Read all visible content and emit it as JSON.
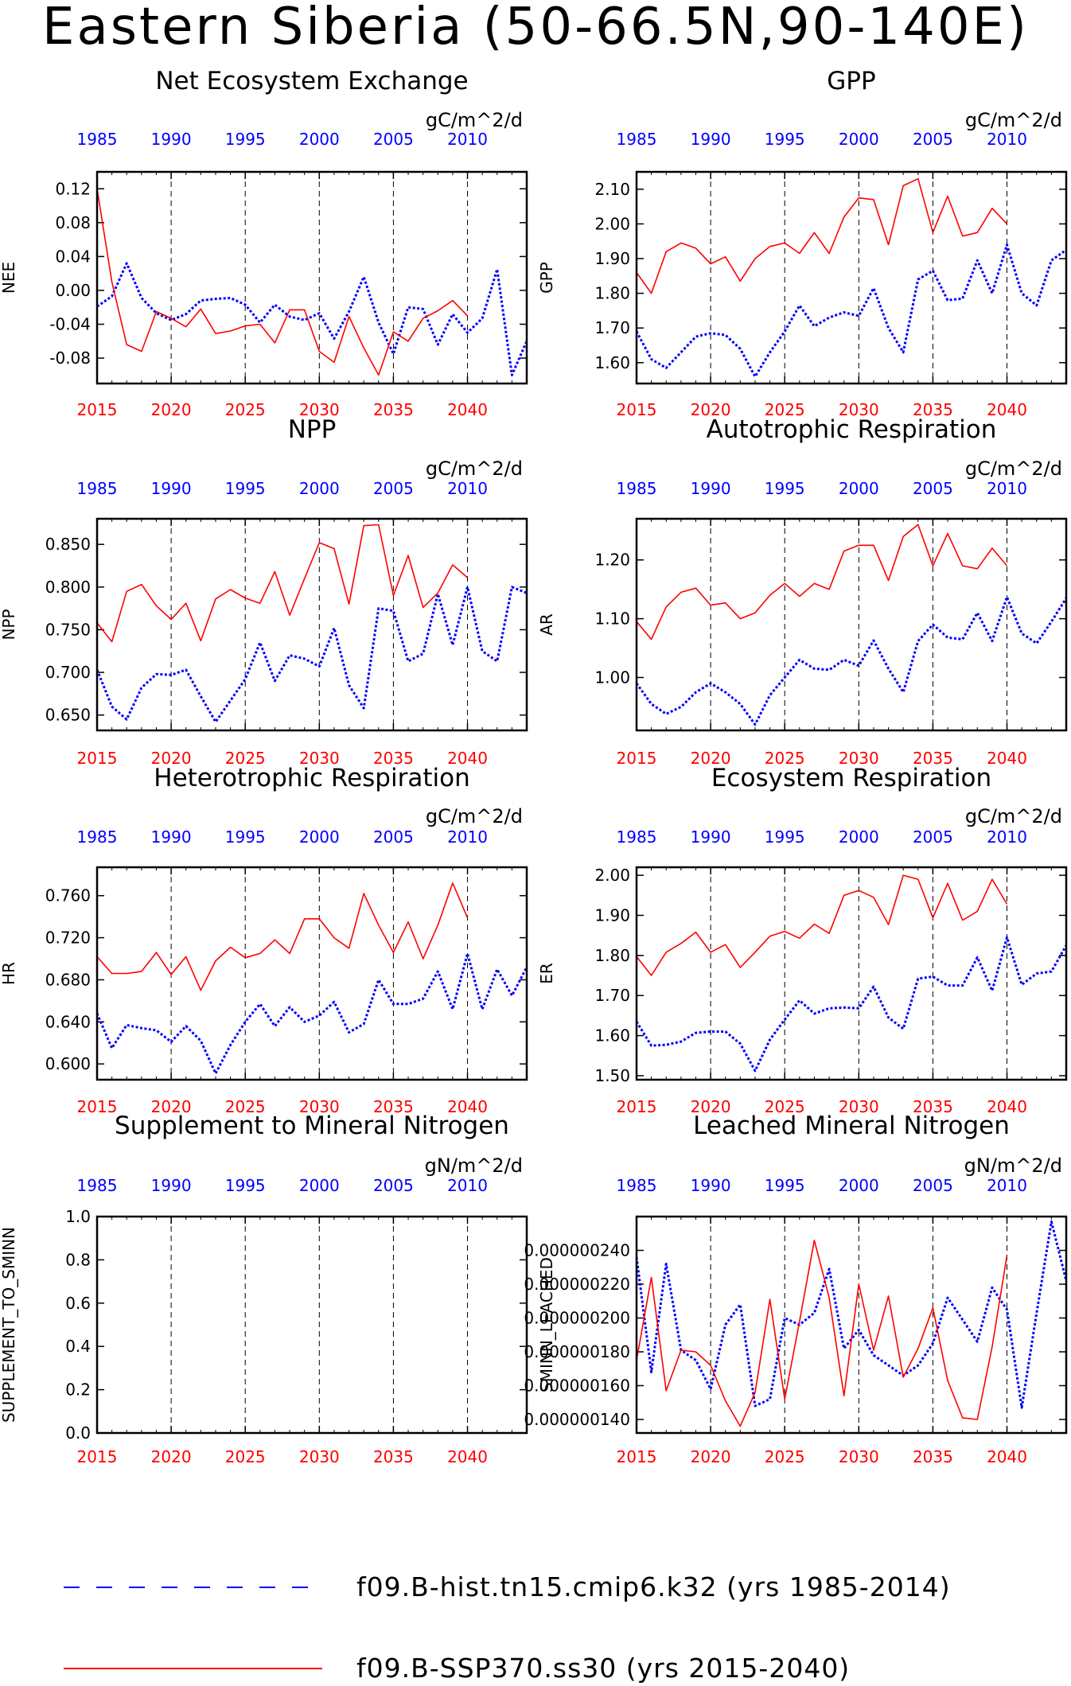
{
  "figure": {
    "title": "Eastern Siberia (50-66.5N,90-140E)",
    "top_axis_years": [
      "1985",
      "1990",
      "1995",
      "2000",
      "2005",
      "2010"
    ],
    "bottom_axis_years": [
      "2015",
      "2020",
      "2025",
      "2030",
      "2035",
      "2040"
    ],
    "colors": {
      "hist": "#0000ff",
      "ssp": "#ff0000",
      "axis": "#000000",
      "grid": "#000000"
    }
  },
  "legend": [
    {
      "label": "f09.B-hist.tn15.cmip6.k32 (yrs 1985-2014)",
      "style": "dashed-blue"
    },
    {
      "label": "f09.B-SSP370.ss30 (yrs 2015-2040)",
      "style": "solid-red"
    }
  ],
  "chart_data": [
    {
      "type": "line",
      "title": "Net Ecosystem Exchange",
      "ylabel": "NEE",
      "units": "gC/m^2/d",
      "ylim": [
        -0.11,
        0.14
      ],
      "yticks": [
        0.12,
        0.08,
        0.04,
        0.0,
        -0.04,
        -0.08
      ],
      "ytick_labels": [
        "0.12",
        "0.08",
        "0.04",
        "0.00",
        "-0.04",
        "-0.08"
      ],
      "hist_x": [
        1985,
        1986,
        1987,
        1988,
        1989,
        1990,
        1991,
        1992,
        1993,
        1994,
        1995,
        1996,
        1997,
        1998,
        1999,
        2000,
        2001,
        2002,
        2003,
        2004,
        2005,
        2006,
        2007,
        2008,
        2009,
        2010,
        2011,
        2012,
        2013,
        2014
      ],
      "ssp_x": [
        2015,
        2016,
        2017,
        2018,
        2019,
        2020,
        2021,
        2022,
        2023,
        2024,
        2025,
        2026,
        2027,
        2028,
        2029,
        2030,
        2031,
        2032,
        2033,
        2034,
        2035,
        2036,
        2037,
        2038,
        2039,
        2040
      ],
      "series": [
        {
          "name": "f09.B-hist.tn15.cmip6.k32 (yrs 1985-2014)",
          "values": [
            -0.019,
            -0.007,
            0.032,
            -0.009,
            -0.027,
            -0.035,
            -0.028,
            -0.012,
            -0.01,
            -0.009,
            -0.017,
            -0.038,
            -0.017,
            -0.031,
            -0.035,
            -0.027,
            -0.057,
            -0.025,
            0.016,
            -0.038,
            -0.075,
            -0.02,
            -0.022,
            -0.064,
            -0.028,
            -0.05,
            -0.033,
            0.025,
            -0.1,
            -0.06
          ]
        },
        {
          "name": "f09.B-SSP370.ss30 (yrs 2015-2040)",
          "values": [
            0.12,
            0.01,
            -0.064,
            -0.072,
            -0.025,
            -0.033,
            -0.043,
            -0.022,
            -0.051,
            -0.048,
            -0.042,
            -0.04,
            -0.062,
            -0.023,
            -0.023,
            -0.072,
            -0.085,
            -0.031,
            -0.068,
            -0.1,
            -0.049,
            -0.06,
            -0.033,
            -0.024,
            -0.012,
            -0.03
          ]
        }
      ]
    },
    {
      "type": "line",
      "title": "GPP",
      "ylabel": "GPP",
      "units": "gC/m^2/d",
      "ylim": [
        1.54,
        2.15
      ],
      "yticks": [
        2.1,
        2.0,
        1.9,
        1.8,
        1.7,
        1.6
      ],
      "ytick_labels": [
        "2.10",
        "2.00",
        "1.90",
        "1.80",
        "1.70",
        "1.60"
      ],
      "hist_x": [
        1985,
        1986,
        1987,
        1988,
        1989,
        1990,
        1991,
        1992,
        1993,
        1994,
        1995,
        1996,
        1997,
        1998,
        1999,
        2000,
        2001,
        2002,
        2003,
        2004,
        2005,
        2006,
        2007,
        2008,
        2009,
        2010,
        2011,
        2012,
        2013,
        2014
      ],
      "ssp_x": [
        2015,
        2016,
        2017,
        2018,
        2019,
        2020,
        2021,
        2022,
        2023,
        2024,
        2025,
        2026,
        2027,
        2028,
        2029,
        2030,
        2031,
        2032,
        2033,
        2034,
        2035,
        2036,
        2037,
        2038,
        2039,
        2040
      ],
      "series": [
        {
          "name": "f09.B-hist.tn15.cmip6.k32 (yrs 1985-2014)",
          "values": [
            1.69,
            1.61,
            1.585,
            1.63,
            1.675,
            1.685,
            1.68,
            1.64,
            1.56,
            1.63,
            1.69,
            1.765,
            1.705,
            1.73,
            1.745,
            1.735,
            1.815,
            1.7,
            1.63,
            1.84,
            1.865,
            1.78,
            1.785,
            1.895,
            1.8,
            1.94,
            1.8,
            1.765,
            1.895,
            1.925
          ]
        },
        {
          "name": "f09.B-SSP370.ss30 (yrs 2015-2040)",
          "values": [
            1.86,
            1.8,
            1.92,
            1.945,
            1.93,
            1.885,
            1.905,
            1.835,
            1.9,
            1.935,
            1.945,
            1.915,
            1.975,
            1.915,
            2.02,
            2.075,
            2.07,
            1.94,
            2.11,
            2.13,
            1.975,
            2.08,
            1.965,
            1.975,
            2.045,
            2.0
          ]
        }
      ]
    },
    {
      "type": "line",
      "title": "NPP",
      "ylabel": "NPP",
      "units": "gC/m^2/d",
      "ylim": [
        0.632,
        0.88
      ],
      "yticks": [
        0.85,
        0.8,
        0.75,
        0.7,
        0.65
      ],
      "ytick_labels": [
        "0.850",
        "0.800",
        "0.750",
        "0.700",
        "0.650"
      ],
      "hist_x": [
        1985,
        1986,
        1987,
        1988,
        1989,
        1990,
        1991,
        1992,
        1993,
        1994,
        1995,
        1996,
        1997,
        1998,
        1999,
        2000,
        2001,
        2002,
        2003,
        2004,
        2005,
        2006,
        2007,
        2008,
        2009,
        2010,
        2011,
        2012,
        2013,
        2014
      ],
      "ssp_x": [
        2015,
        2016,
        2017,
        2018,
        2019,
        2020,
        2021,
        2022,
        2023,
        2024,
        2025,
        2026,
        2027,
        2028,
        2029,
        2030,
        2031,
        2032,
        2033,
        2034,
        2035,
        2036,
        2037,
        2038,
        2039,
        2040
      ],
      "series": [
        {
          "name": "f09.B-hist.tn15.cmip6.k32 (yrs 1985-2014)",
          "values": [
            0.703,
            0.66,
            0.645,
            0.682,
            0.698,
            0.697,
            0.703,
            0.672,
            0.642,
            0.667,
            0.692,
            0.735,
            0.69,
            0.72,
            0.716,
            0.707,
            0.752,
            0.685,
            0.658,
            0.775,
            0.772,
            0.713,
            0.722,
            0.792,
            0.732,
            0.8,
            0.725,
            0.713,
            0.8,
            0.793
          ]
        },
        {
          "name": "f09.B-SSP370.ss30 (yrs 2015-2040)",
          "values": [
            0.758,
            0.736,
            0.795,
            0.803,
            0.778,
            0.762,
            0.781,
            0.737,
            0.786,
            0.797,
            0.787,
            0.781,
            0.818,
            0.767,
            0.81,
            0.852,
            0.845,
            0.78,
            0.872,
            0.873,
            0.79,
            0.837,
            0.776,
            0.793,
            0.826,
            0.811
          ]
        }
      ]
    },
    {
      "type": "line",
      "title": "Autotrophic Respiration",
      "ylabel": "AR",
      "units": "gC/m^2/d",
      "ylim": [
        0.91,
        1.27
      ],
      "yticks": [
        1.2,
        1.1,
        1.0
      ],
      "ytick_labels": [
        "1.20",
        "1.10",
        "1.00"
      ],
      "hist_x": [
        1985,
        1986,
        1987,
        1988,
        1989,
        1990,
        1991,
        1992,
        1993,
        1994,
        1995,
        1996,
        1997,
        1998,
        1999,
        2000,
        2001,
        2002,
        2003,
        2004,
        2005,
        2006,
        2007,
        2008,
        2009,
        2010,
        2011,
        2012,
        2013,
        2014
      ],
      "ssp_x": [
        2015,
        2016,
        2017,
        2018,
        2019,
        2020,
        2021,
        2022,
        2023,
        2024,
        2025,
        2026,
        2027,
        2028,
        2029,
        2030,
        2031,
        2032,
        2033,
        2034,
        2035,
        2036,
        2037,
        2038,
        2039,
        2040
      ],
      "series": [
        {
          "name": "f09.B-hist.tn15.cmip6.k32 (yrs 1985-2014)",
          "values": [
            0.99,
            0.955,
            0.938,
            0.95,
            0.975,
            0.99,
            0.975,
            0.955,
            0.92,
            0.97,
            1.0,
            1.03,
            1.015,
            1.013,
            1.03,
            1.02,
            1.063,
            1.015,
            0.975,
            1.062,
            1.09,
            1.068,
            1.065,
            1.11,
            1.062,
            1.137,
            1.075,
            1.058,
            1.095,
            1.135
          ]
        },
        {
          "name": "f09.B-SSP370.ss30 (yrs 2015-2040)",
          "values": [
            1.095,
            1.065,
            1.12,
            1.145,
            1.152,
            1.123,
            1.127,
            1.1,
            1.11,
            1.14,
            1.16,
            1.138,
            1.16,
            1.15,
            1.215,
            1.225,
            1.225,
            1.165,
            1.24,
            1.26,
            1.19,
            1.245,
            1.19,
            1.185,
            1.22,
            1.19
          ]
        }
      ]
    },
    {
      "type": "line",
      "title": "Heterotrophic Respiration",
      "ylabel": "HR",
      "units": "gC/m^2/d",
      "ylim": [
        0.585,
        0.787
      ],
      "yticks": [
        0.76,
        0.72,
        0.68,
        0.64,
        0.6
      ],
      "ytick_labels": [
        "0.760",
        "0.720",
        "0.680",
        "0.640",
        "0.600"
      ],
      "hist_x": [
        1985,
        1986,
        1987,
        1988,
        1989,
        1990,
        1991,
        1992,
        1993,
        1994,
        1995,
        1996,
        1997,
        1998,
        1999,
        2000,
        2001,
        2002,
        2003,
        2004,
        2005,
        2006,
        2007,
        2008,
        2009,
        2010,
        2011,
        2012,
        2013,
        2014
      ],
      "ssp_x": [
        2015,
        2016,
        2017,
        2018,
        2019,
        2020,
        2021,
        2022,
        2023,
        2024,
        2025,
        2026,
        2027,
        2028,
        2029,
        2030,
        2031,
        2032,
        2033,
        2034,
        2035,
        2036,
        2037,
        2038,
        2039,
        2040
      ],
      "series": [
        {
          "name": "f09.B-hist.tn15.cmip6.k32 (yrs 1985-2014)",
          "values": [
            0.648,
            0.615,
            0.637,
            0.634,
            0.632,
            0.621,
            0.636,
            0.622,
            0.591,
            0.618,
            0.64,
            0.657,
            0.636,
            0.654,
            0.64,
            0.646,
            0.659,
            0.63,
            0.638,
            0.68,
            0.657,
            0.657,
            0.662,
            0.688,
            0.652,
            0.705,
            0.652,
            0.69,
            0.665,
            0.692
          ]
        },
        {
          "name": "f09.B-SSP370.ss30 (yrs 2015-2040)",
          "values": [
            0.702,
            0.686,
            0.686,
            0.688,
            0.706,
            0.685,
            0.702,
            0.67,
            0.698,
            0.711,
            0.701,
            0.705,
            0.718,
            0.705,
            0.738,
            0.738,
            0.72,
            0.71,
            0.762,
            0.732,
            0.706,
            0.735,
            0.7,
            0.732,
            0.772,
            0.739
          ]
        }
      ]
    },
    {
      "type": "line",
      "title": "Ecosystem Respiration",
      "ylabel": "ER",
      "units": "gC/m^2/d",
      "ylim": [
        1.49,
        2.02
      ],
      "yticks": [
        2.0,
        1.9,
        1.8,
        1.7,
        1.6,
        1.5
      ],
      "ytick_labels": [
        "2.00",
        "1.90",
        "1.80",
        "1.70",
        "1.60",
        "1.50"
      ],
      "hist_x": [
        1985,
        1986,
        1987,
        1988,
        1989,
        1990,
        1991,
        1992,
        1993,
        1994,
        1995,
        1996,
        1997,
        1998,
        1999,
        2000,
        2001,
        2002,
        2003,
        2004,
        2005,
        2006,
        2007,
        2008,
        2009,
        2010,
        2011,
        2012,
        2013,
        2014
      ],
      "ssp_x": [
        2015,
        2016,
        2017,
        2018,
        2019,
        2020,
        2021,
        2022,
        2023,
        2024,
        2025,
        2026,
        2027,
        2028,
        2029,
        2030,
        2031,
        2032,
        2033,
        2034,
        2035,
        2036,
        2037,
        2038,
        2039,
        2040
      ],
      "series": [
        {
          "name": "f09.B-hist.tn15.cmip6.k32 (yrs 1985-2014)",
          "values": [
            1.635,
            1.575,
            1.577,
            1.585,
            1.607,
            1.61,
            1.61,
            1.58,
            1.512,
            1.59,
            1.64,
            1.688,
            1.655,
            1.668,
            1.67,
            1.668,
            1.722,
            1.645,
            1.617,
            1.742,
            1.747,
            1.725,
            1.725,
            1.795,
            1.712,
            1.845,
            1.727,
            1.755,
            1.76,
            1.825
          ]
        },
        {
          "name": "f09.B-SSP370.ss30 (yrs 2015-2040)",
          "values": [
            1.797,
            1.75,
            1.808,
            1.83,
            1.858,
            1.808,
            1.827,
            1.77,
            1.808,
            1.848,
            1.86,
            1.843,
            1.878,
            1.855,
            1.95,
            1.962,
            1.945,
            1.877,
            2.0,
            1.99,
            1.894,
            1.98,
            1.888,
            1.91,
            1.99,
            1.928
          ]
        }
      ]
    },
    {
      "type": "line",
      "title": "Supplement to Mineral Nitrogen",
      "ylabel": "SUPPLEMENT_TO_SMINN",
      "units": "gN/m^2/d",
      "ylim": [
        0.0,
        1.0
      ],
      "yticks": [
        1.0,
        0.8,
        0.6,
        0.4,
        0.2,
        0.0
      ],
      "ytick_labels": [
        "1.0",
        "0.8",
        "0.6",
        "0.4",
        "0.2",
        "0.0"
      ],
      "hist_x": [],
      "ssp_x": [],
      "series": []
    },
    {
      "type": "line",
      "title": "Leached Mineral Nitrogen",
      "ylabel": "SMINN_LEACHED",
      "units": "gN/m^2/d",
      "ylim": [
        1.32e-07,
        2.6e-07
      ],
      "yticks": [
        2.4e-07,
        2.2e-07,
        2e-07,
        1.8e-07,
        1.6e-07,
        1.4e-07
      ],
      "ytick_labels": [
        "0.000000240",
        "0.000000220",
        "0.000000200",
        "0.000000180",
        "0.000000160",
        "0.000000140"
      ],
      "hist_x": [
        1985,
        1986,
        1987,
        1988,
        1989,
        1990,
        1991,
        1992,
        1993,
        1994,
        1995,
        1996,
        1997,
        1998,
        1999,
        2000,
        2001,
        2002,
        2003,
        2004,
        2005,
        2006,
        2007,
        2008,
        2009,
        2010,
        2011,
        2012,
        2013,
        2014
      ],
      "ssp_x": [
        2015,
        2016,
        2017,
        2018,
        2019,
        2020,
        2021,
        2022,
        2023,
        2024,
        2025,
        2026,
        2027,
        2028,
        2029,
        2030,
        2031,
        2032,
        2033,
        2034,
        2035,
        2036,
        2037,
        2038,
        2039,
        2040
      ],
      "series": [
        {
          "name": "f09.B-hist.tn15.cmip6.k32 (yrs 1985-2014)",
          "values": [
            2.36e-07,
            1.68e-07,
            2.32e-07,
            1.81e-07,
            1.75e-07,
            1.58e-07,
            1.96e-07,
            2.08e-07,
            1.48e-07,
            1.52e-07,
            2e-07,
            1.96e-07,
            2.03e-07,
            2.29e-07,
            1.82e-07,
            1.93e-07,
            1.78e-07,
            1.72e-07,
            1.66e-07,
            1.72e-07,
            1.85e-07,
            2.12e-07,
            1.99e-07,
            1.86e-07,
            2.18e-07,
            2.05e-07,
            1.47e-07,
            2.03e-07,
            2.57e-07,
            2.22e-07
          ]
        },
        {
          "name": "f09.B-SSP370.ss30 (yrs 2015-2040)",
          "values": [
            1.75e-07,
            2.24e-07,
            1.57e-07,
            1.81e-07,
            1.8e-07,
            1.72e-07,
            1.51e-07,
            1.36e-07,
            1.56e-07,
            2.11e-07,
            1.52e-07,
            1.98e-07,
            2.46e-07,
            2.12e-07,
            1.54e-07,
            2.2e-07,
            1.81e-07,
            2.13e-07,
            1.65e-07,
            1.82e-07,
            2.06e-07,
            1.63e-07,
            1.41e-07,
            1.4e-07,
            1.83e-07,
            2.37e-07
          ]
        }
      ]
    }
  ]
}
